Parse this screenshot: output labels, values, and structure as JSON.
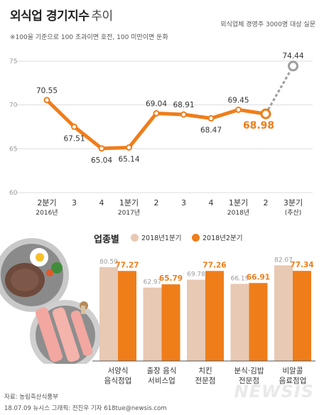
{
  "header": {
    "title": "외식업 경기지수",
    "title_suffix": "추이",
    "survey_note": "외식업체 경영주 3000명 대상 실문",
    "index_note": "※100을 기준으로 100 초과이면 호전, 100 미만이면 둔화"
  },
  "footer": {
    "source": "자료: 농림축산식품부",
    "credit": "18.07.09 뉴시스 그래픽: 전진우 기자 618tue@newsis.com",
    "logo": "NEWSIS"
  },
  "colors": {
    "orange": "#ef7d1a",
    "beige": "#e8c9b3",
    "grid": "#dddddd",
    "forecast": "#9e9e9e"
  },
  "chart_data": [
    {
      "type": "line",
      "title": "",
      "ylim": [
        60,
        75
      ],
      "yticks": [
        "60",
        "65",
        "70",
        "75"
      ],
      "categories": [
        "2분기",
        "3",
        "4",
        "1분기",
        "2",
        "3",
        "4",
        "1분기",
        "2",
        "3분기"
      ],
      "category_sublabels": [
        "2016년",
        "",
        "",
        "2017년",
        "",
        "",
        "",
        "2018년",
        "",
        "(추산)"
      ],
      "values": [
        70.55,
        67.51,
        65.04,
        65.14,
        69.04,
        68.91,
        68.47,
        69.45,
        68.98,
        74.44
      ],
      "value_labels": [
        "70.55",
        "67.51",
        "65.04",
        "65.14",
        "69.04",
        "68.91",
        "68.47",
        "69.45",
        "68.98",
        "74.44"
      ],
      "highlight_index": 8,
      "forecast_index": 9,
      "grid": true
    },
    {
      "type": "bar",
      "title": "업종별",
      "categories": [
        "서양식\n음식점업",
        "출장 음식\n서비스업",
        "치킨\n전문점",
        "분식·김밥\n전문점",
        "비알콜\n음료점업"
      ],
      "series": [
        {
          "name": "2018년1분기",
          "values": [
            80.59,
            62.97,
            69.78,
            66.19,
            82.07
          ],
          "value_labels": [
            "80.59",
            "62.97",
            "69.78",
            "66.19",
            "82.07"
          ]
        },
        {
          "name": "2018년2분기",
          "values": [
            77.27,
            65.79,
            77.26,
            66.91,
            77.34
          ],
          "value_labels": [
            "77.27",
            "65.79",
            "77.26",
            "66.91",
            "77.34"
          ]
        }
      ],
      "legend": "top"
    }
  ]
}
